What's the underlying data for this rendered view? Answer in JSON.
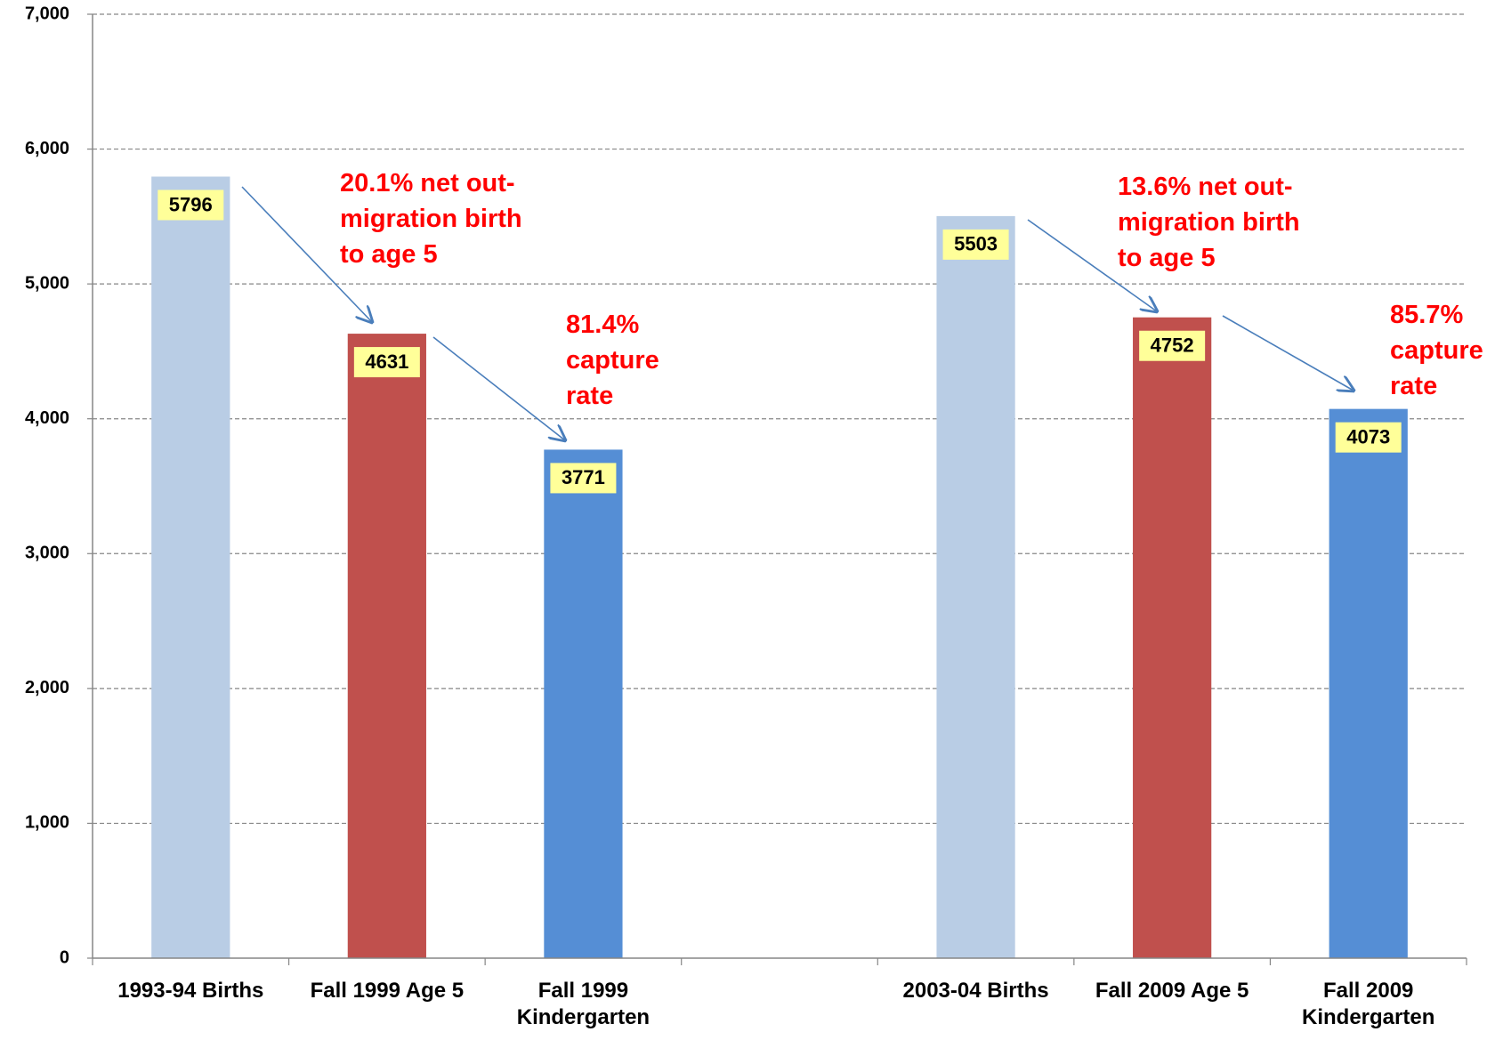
{
  "chart_data": {
    "type": "bar",
    "categories": [
      "1993-94 Births",
      "Fall 1999  Age 5",
      "Fall 1999 Kindergarten",
      null,
      "2003-04 Births",
      "Fall 2009  Age 5",
      "Fall 2009 Kindergarten"
    ],
    "values": [
      5796,
      4631,
      3771,
      null,
      5503,
      4752,
      4073
    ],
    "colors": [
      "#b9cde5",
      "#c0504d",
      "#558ed5",
      null,
      "#b9cde5",
      "#c0504d",
      "#558ed5"
    ],
    "ylim": [
      0,
      7000
    ],
    "yticks": [
      0,
      {
        "value": 1000,
        "label": "1,000"
      },
      {
        "value": 2000,
        "label": "2,000"
      },
      {
        "value": 3000,
        "label": "3,000"
      },
      {
        "value": 4000,
        "label": "4,000"
      },
      {
        "value": 5000,
        "label": "5,000"
      },
      {
        "value": 6000,
        "label": "6,000"
      },
      {
        "value": 7000,
        "label": "7,000"
      }
    ],
    "grid": true,
    "annotations": [
      "20.1% net out-\nmigration birth\nto age 5",
      "81.4%\ncapture\nrate",
      "13.6% net out-\nmigration birth\nto age 5",
      "85.7%\ncapture\nrate"
    ]
  }
}
